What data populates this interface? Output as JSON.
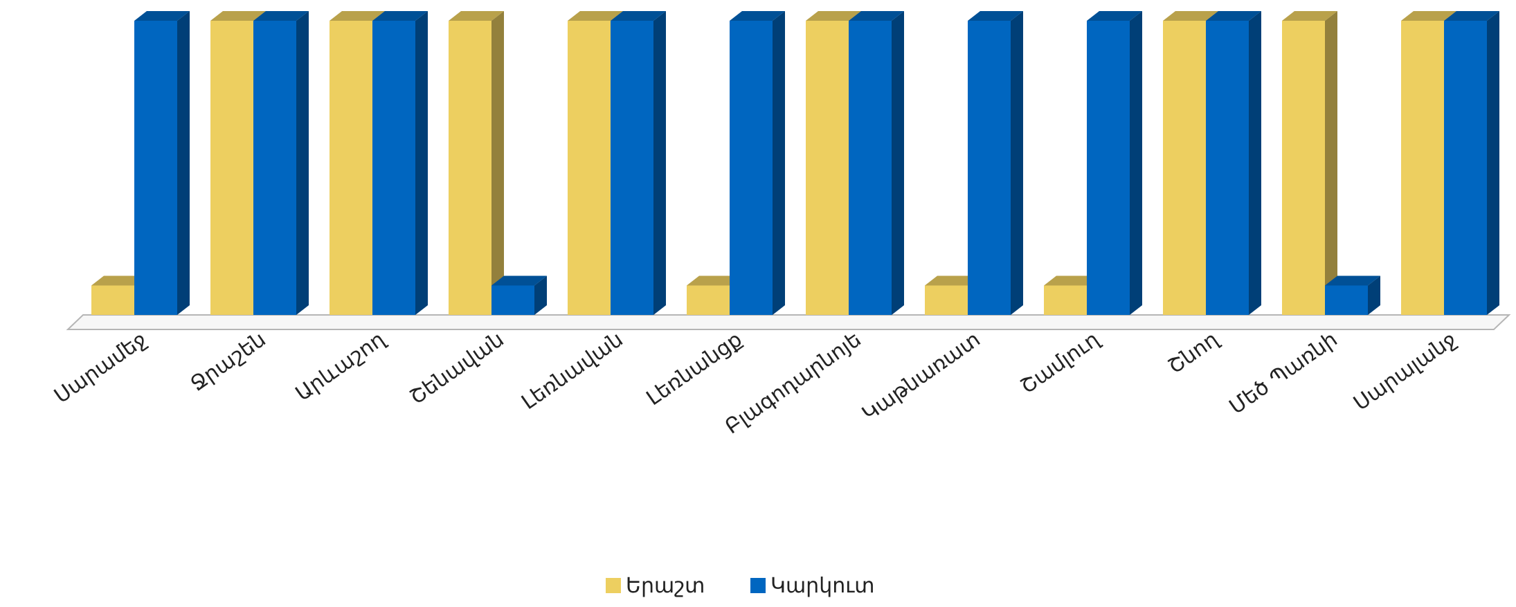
{
  "chart_data": {
    "type": "bar",
    "style": "3d-clustered-column",
    "title": "",
    "xlabel": "",
    "ylabel": "",
    "ylim": [
      0,
      1
    ],
    "grid": false,
    "legend_position": "bottom",
    "categories": [
      "Սարամեջ",
      "Ջրաշեն",
      "Արևաշող",
      "Շենավան",
      "Լեռնավան",
      "Լեռնանցք",
      "Բլագոդարնոյե",
      "Կաթնառատ",
      "Շամլուղ",
      "Շնող",
      "Մեծ Պառնի",
      "Սարալանջ"
    ],
    "series": [
      {
        "name": "Երաշտ",
        "color": "#EDCF60",
        "values": [
          0.1,
          1,
          1,
          1,
          1,
          0.1,
          1,
          0.1,
          0.1,
          1,
          1,
          1
        ]
      },
      {
        "name": "Կարկուտ",
        "color": "#0066C0",
        "values": [
          1,
          1,
          1,
          0.1,
          1,
          1,
          1,
          1,
          1,
          1,
          0.1,
          1
        ]
      }
    ]
  }
}
